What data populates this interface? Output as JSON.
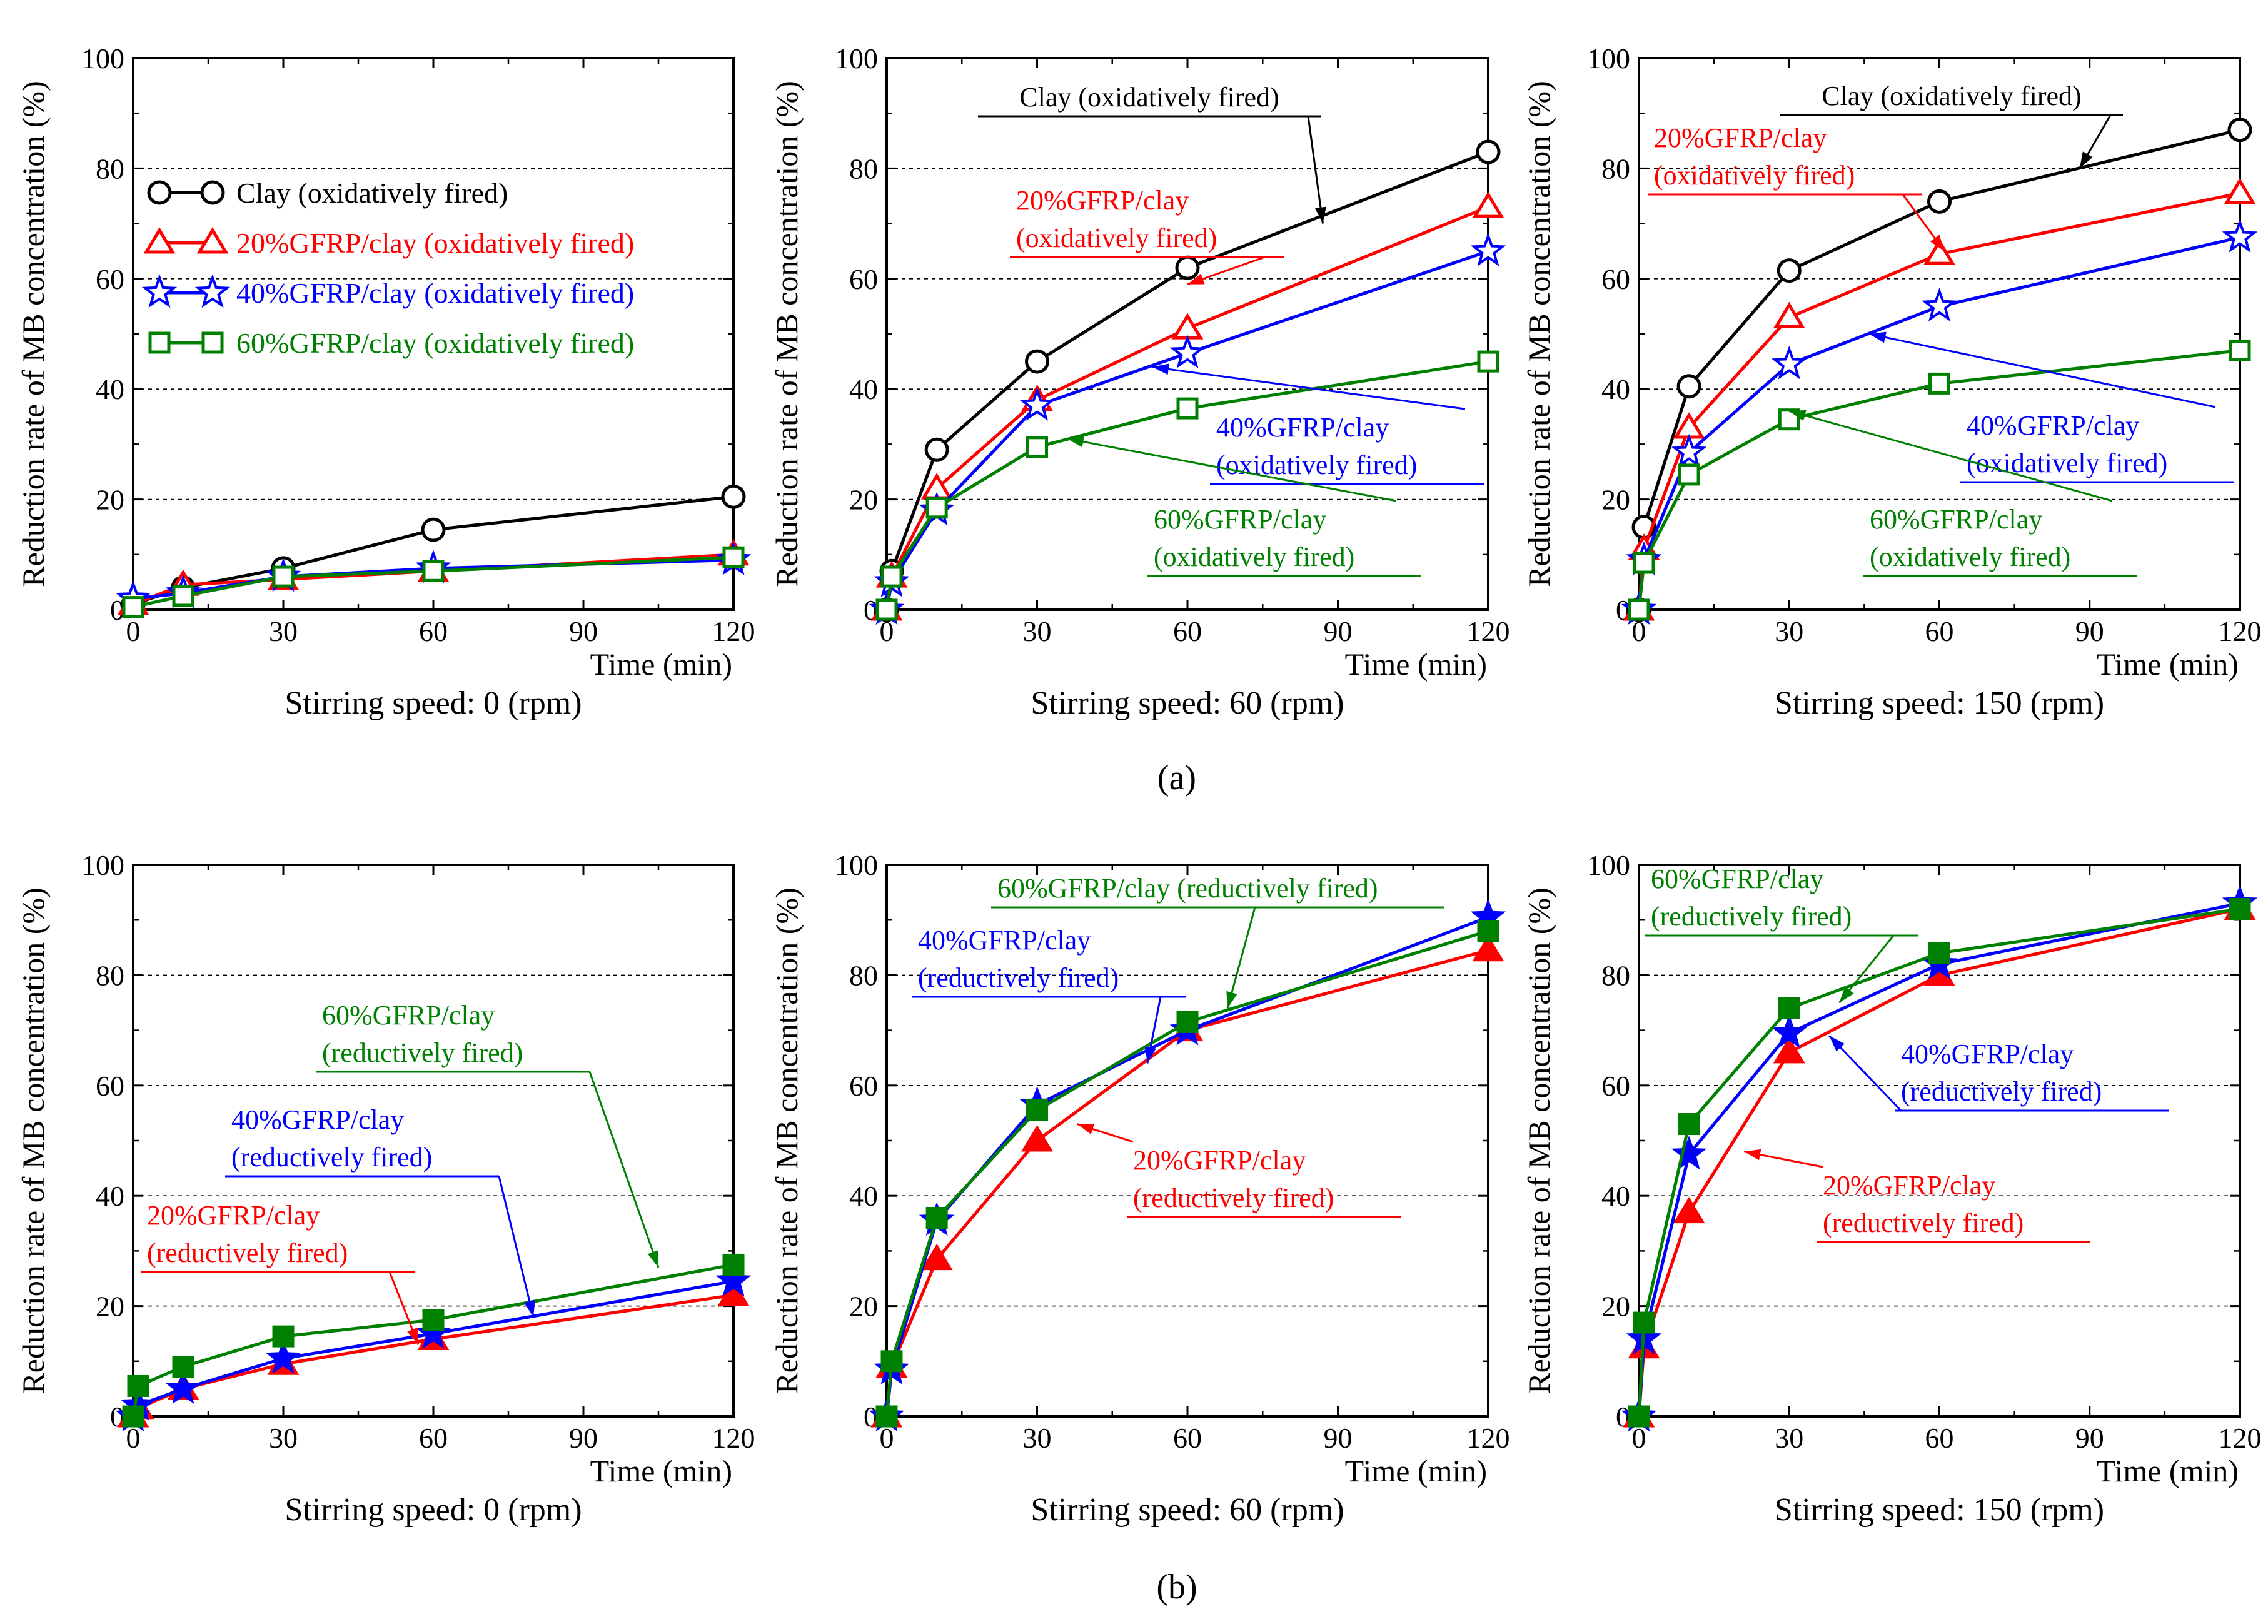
{
  "colors": {
    "clay": "#000000",
    "gfrp20": "#ff0000",
    "gfrp40": "#0000ff",
    "gfrp60": "#008000"
  },
  "panel_labels": {
    "a": "(a)",
    "b": "(b)"
  },
  "chart_data": [
    {
      "type": "line",
      "title": "",
      "xlabel": "Time (min)",
      "ylabel": "Reduction rate of MB concentration (%)",
      "caption": "Stirring speed: 0 (rpm)",
      "xlim": [
        0,
        120
      ],
      "ylim": [
        0,
        100
      ],
      "xticks": [
        "0",
        "30",
        "60",
        "90",
        "120"
      ],
      "yticks": [
        "0",
        "20",
        "40",
        "60",
        "80",
        "100"
      ],
      "fill": "open",
      "legend": "top-left",
      "series": [
        {
          "name": "Clay (oxidatively fired)",
          "color_key": "clay",
          "marker": "circle",
          "x": [
            0,
            10,
            30,
            60,
            120
          ],
          "y": [
            1,
            4,
            7.5,
            14.5,
            20.5
          ]
        },
        {
          "name": "20%GFRP/clay (oxidatively fired)",
          "color_key": "gfrp20",
          "marker": "triangle",
          "x": [
            0,
            10,
            30,
            60,
            120
          ],
          "y": [
            1,
            4.5,
            5.5,
            7,
            10
          ]
        },
        {
          "name": "40%GFRP/clay (oxidatively fired)",
          "color_key": "gfrp40",
          "marker": "star",
          "x": [
            0,
            10,
            30,
            60,
            120
          ],
          "y": [
            2,
            3,
            6,
            7.5,
            9
          ]
        },
        {
          "name": "60%GFRP/clay (oxidatively fired)",
          "color_key": "gfrp60",
          "marker": "square",
          "x": [
            0,
            10,
            30,
            60,
            120
          ],
          "y": [
            0.5,
            2.5,
            6,
            7,
            9.5
          ]
        }
      ],
      "annotations": []
    },
    {
      "type": "line",
      "title": "",
      "xlabel": "Time (min)",
      "ylabel": "Reduction rate of MB concentration (%)",
      "caption": "Stirring speed: 60 (rpm)",
      "xlim": [
        0,
        120
      ],
      "ylim": [
        0,
        100
      ],
      "xticks": [
        "0",
        "30",
        "60",
        "90",
        "120"
      ],
      "yticks": [
        "0",
        "20",
        "40",
        "60",
        "80",
        "100"
      ],
      "fill": "open",
      "series": [
        {
          "name": "Clay (oxidatively fired)",
          "color_key": "clay",
          "marker": "circle",
          "x": [
            0,
            1,
            10,
            30,
            60,
            120
          ],
          "y": [
            0,
            7,
            29,
            45,
            62,
            83
          ]
        },
        {
          "name": "20%GFRP/clay (oxidatively fired)",
          "color_key": "gfrp20",
          "marker": "triangle",
          "x": [
            0,
            1,
            10,
            30,
            60,
            120
          ],
          "y": [
            0,
            6,
            22,
            38,
            51,
            73
          ]
        },
        {
          "name": "40%GFRP/clay (oxidatively fired)",
          "color_key": "gfrp40",
          "marker": "star",
          "x": [
            0,
            1,
            10,
            30,
            60,
            120
          ],
          "y": [
            0,
            5,
            18,
            37,
            46.5,
            65
          ]
        },
        {
          "name": "60%GFRP/clay (oxidatively fired)",
          "color_key": "gfrp60",
          "marker": "square",
          "x": [
            0,
            1,
            10,
            30,
            60,
            120
          ],
          "y": [
            0,
            6,
            18.5,
            29.5,
            36.5,
            45
          ]
        }
      ],
      "annotations": [
        {
          "lines": [
            "Clay (oxidatively fired)"
          ],
          "color_key": "clay",
          "anchor": "text-top",
          "target": [
            87,
            70
          ]
        },
        {
          "lines": [
            "20%GFRP/clay",
            "(oxidatively fired)"
          ],
          "color_key": "gfrp20",
          "anchor": "text-upper-left",
          "target": [
            60,
            59
          ]
        },
        {
          "lines": [
            "40%GFRP/clay",
            "(oxidatively fired)"
          ],
          "color_key": "gfrp40",
          "anchor": "text-right",
          "target": [
            53,
            44
          ]
        },
        {
          "lines": [
            "60%GFRP/clay",
            "(oxidatively fired)"
          ],
          "color_key": "gfrp60",
          "anchor": "text-bottom-right",
          "target": [
            36,
            31
          ]
        }
      ]
    },
    {
      "type": "line",
      "title": "",
      "xlabel": "Time (min)",
      "ylabel": "Reduction rate of MB concentration (%)",
      "caption": "Stirring speed: 150 (rpm)",
      "xlim": [
        0,
        120
      ],
      "ylim": [
        0,
        100
      ],
      "xticks": [
        "0",
        "30",
        "60",
        "90",
        "120"
      ],
      "yticks": [
        "0",
        "20",
        "40",
        "60",
        "80",
        "100"
      ],
      "fill": "open",
      "series": [
        {
          "name": "Clay (oxidatively fired)",
          "color_key": "clay",
          "marker": "circle",
          "x": [
            0,
            1,
            10,
            30,
            60,
            120
          ],
          "y": [
            0,
            15,
            40.5,
            61.5,
            74,
            87
          ]
        },
        {
          "name": "20%GFRP/clay (oxidatively fired)",
          "color_key": "gfrp20",
          "marker": "triangle",
          "x": [
            0,
            1,
            10,
            30,
            60,
            120
          ],
          "y": [
            0,
            11,
            33,
            53,
            64.5,
            75.5
          ]
        },
        {
          "name": "40%GFRP/clay (oxidatively fired)",
          "color_key": "gfrp40",
          "marker": "star",
          "x": [
            0,
            1,
            10,
            30,
            60,
            120
          ],
          "y": [
            0,
            9,
            28.5,
            44.5,
            55,
            67.5
          ]
        },
        {
          "name": "60%GFRP/clay (oxidatively fired)",
          "color_key": "gfrp60",
          "marker": "square",
          "x": [
            0,
            1,
            10,
            30,
            60,
            120
          ],
          "y": [
            0,
            8.5,
            24.5,
            34.5,
            41,
            47
          ]
        }
      ],
      "annotations": [
        {
          "lines": [
            "Clay (oxidatively fired)"
          ],
          "color_key": "clay",
          "anchor": "text-top",
          "target": [
            88,
            80
          ]
        },
        {
          "lines": [
            "20%GFRP/clay",
            "(oxidatively fired)"
          ],
          "color_key": "gfrp20",
          "anchor": "text-upper-left",
          "target": [
            61,
            65
          ]
        },
        {
          "lines": [
            "40%GFRP/clay",
            "(oxidatively fired)"
          ],
          "color_key": "gfrp40",
          "anchor": "text-right",
          "target": [
            46,
            50
          ]
        },
        {
          "lines": [
            "60%GFRP/clay",
            "(oxidatively fired)"
          ],
          "color_key": "gfrp60",
          "anchor": "text-bottom-right",
          "target": [
            30,
            36
          ]
        }
      ]
    },
    {
      "type": "line",
      "title": "",
      "xlabel": "Time (min)",
      "ylabel": "Reduction rate of MB concentration (%)",
      "caption": "Stirring speed: 0 (rpm)",
      "xlim": [
        0,
        120
      ],
      "ylim": [
        0,
        100
      ],
      "xticks": [
        "0",
        "30",
        "60",
        "90",
        "120"
      ],
      "yticks": [
        "0",
        "20",
        "40",
        "60",
        "80",
        "100"
      ],
      "fill": "filled",
      "series": [
        {
          "name": "20%GFRP/clay (reductively fired)",
          "color_key": "gfrp20",
          "marker": "triangle",
          "x": [
            0,
            1,
            10,
            30,
            60,
            120
          ],
          "y": [
            0,
            1.5,
            5,
            9.5,
            14,
            22
          ]
        },
        {
          "name": "40%GFRP/clay (reductively fired)",
          "color_key": "gfrp40",
          "marker": "star",
          "x": [
            0,
            1,
            10,
            30,
            60,
            120
          ],
          "y": [
            0,
            2,
            5,
            10.5,
            15,
            24.5
          ]
        },
        {
          "name": "60%GFRP/clay (reductively fired)",
          "color_key": "gfrp60",
          "marker": "square",
          "x": [
            0,
            1,
            10,
            30,
            60,
            120
          ],
          "y": [
            0,
            5.5,
            9,
            14.5,
            17.5,
            27.5
          ]
        }
      ],
      "annotations": [
        {
          "lines": [
            "60%GFRP/clay",
            "(reductively fired)"
          ],
          "color_key": "gfrp60",
          "anchor": "text-right",
          "target": [
            105,
            27
          ]
        },
        {
          "lines": [
            "40%GFRP/clay",
            "(reductively fired)"
          ],
          "color_key": "gfrp40",
          "anchor": "text-right",
          "target": [
            80,
            18
          ]
        },
        {
          "lines": [
            "20%GFRP/clay",
            "(reductively fired)"
          ],
          "color_key": "gfrp20",
          "anchor": "text-bottom-right",
          "target": [
            57,
            13
          ]
        }
      ]
    },
    {
      "type": "line",
      "title": "",
      "xlabel": "Time (min)",
      "ylabel": "Reduction rate of MB concentration (%)",
      "caption": "Stirring speed: 60 (rpm)",
      "xlim": [
        0,
        120
      ],
      "ylim": [
        0,
        100
      ],
      "xticks": [
        "0",
        "30",
        "60",
        "90",
        "120"
      ],
      "yticks": [
        "0",
        "20",
        "40",
        "60",
        "80",
        "100"
      ],
      "fill": "filled",
      "series": [
        {
          "name": "20%GFRP/clay (reductively fired)",
          "color_key": "gfrp20",
          "marker": "triangle",
          "x": [
            0,
            1,
            10,
            30,
            60,
            120
          ],
          "y": [
            0,
            9,
            28.5,
            50,
            70,
            84.5
          ]
        },
        {
          "name": "40%GFRP/clay (reductively fired)",
          "color_key": "gfrp40",
          "marker": "star",
          "x": [
            0,
            1,
            10,
            30,
            60,
            120
          ],
          "y": [
            0,
            8.5,
            35.5,
            56.5,
            70,
            90.5
          ]
        },
        {
          "name": "60%GFRP/clay (reductively fired)",
          "color_key": "gfrp60",
          "marker": "square",
          "x": [
            0,
            1,
            10,
            30,
            60,
            120
          ],
          "y": [
            0,
            10,
            36,
            55.5,
            71.5,
            88
          ]
        }
      ],
      "annotations": [
        {
          "lines": [
            "60%GFRP/clay (reductively fired)"
          ],
          "color_key": "gfrp60",
          "anchor": "text-bottom",
          "target": [
            68,
            74
          ]
        },
        {
          "lines": [
            "40%GFRP/clay",
            "(reductively fired)"
          ],
          "color_key": "gfrp40",
          "anchor": "text-bottom-right",
          "target": [
            52,
            64
          ]
        },
        {
          "lines": [
            "20%GFRP/clay",
            "(reductively fired)"
          ],
          "color_key": "gfrp20",
          "anchor": "text-left",
          "target": [
            38,
            53
          ]
        }
      ]
    },
    {
      "type": "line",
      "title": "",
      "xlabel": "Time (min)",
      "ylabel": "Reduction rate of MB concentration (%)",
      "caption": "Stirring speed: 150 (rpm)",
      "xlim": [
        0,
        120
      ],
      "ylim": [
        0,
        100
      ],
      "xticks": [
        "0",
        "30",
        "60",
        "90",
        "120"
      ],
      "yticks": [
        "0",
        "20",
        "40",
        "60",
        "80",
        "100"
      ],
      "fill": "filled",
      "series": [
        {
          "name": "20%GFRP/clay (reductively fired)",
          "color_key": "gfrp20",
          "marker": "triangle",
          "x": [
            0,
            1,
            10,
            30,
            60,
            120
          ],
          "y": [
            0,
            12.5,
            37,
            66,
            80,
            92
          ]
        },
        {
          "name": "40%GFRP/clay (reductively fired)",
          "color_key": "gfrp40",
          "marker": "star",
          "x": [
            0,
            1,
            10,
            30,
            60,
            120
          ],
          "y": [
            0,
            14,
            47.5,
            69.5,
            82,
            93
          ]
        },
        {
          "name": "60%GFRP/clay (reductively fired)",
          "color_key": "gfrp60",
          "marker": "square",
          "x": [
            0,
            1,
            10,
            30,
            60,
            120
          ],
          "y": [
            0,
            17,
            53,
            74,
            84,
            92
          ]
        }
      ],
      "annotations": [
        {
          "lines": [
            "60%GFRP/clay",
            "(reductively fired)"
          ],
          "color_key": "gfrp60",
          "anchor": "text-bottom-right",
          "target": [
            40,
            75
          ]
        },
        {
          "lines": [
            "40%GFRP/clay",
            "(reductively fired)"
          ],
          "color_key": "gfrp40",
          "anchor": "text-left",
          "target": [
            38,
            69
          ]
        },
        {
          "lines": [
            "20%GFRP/clay",
            "(reductively fired)"
          ],
          "color_key": "gfrp20",
          "anchor": "text-left",
          "target": [
            21,
            48
          ]
        }
      ]
    }
  ]
}
